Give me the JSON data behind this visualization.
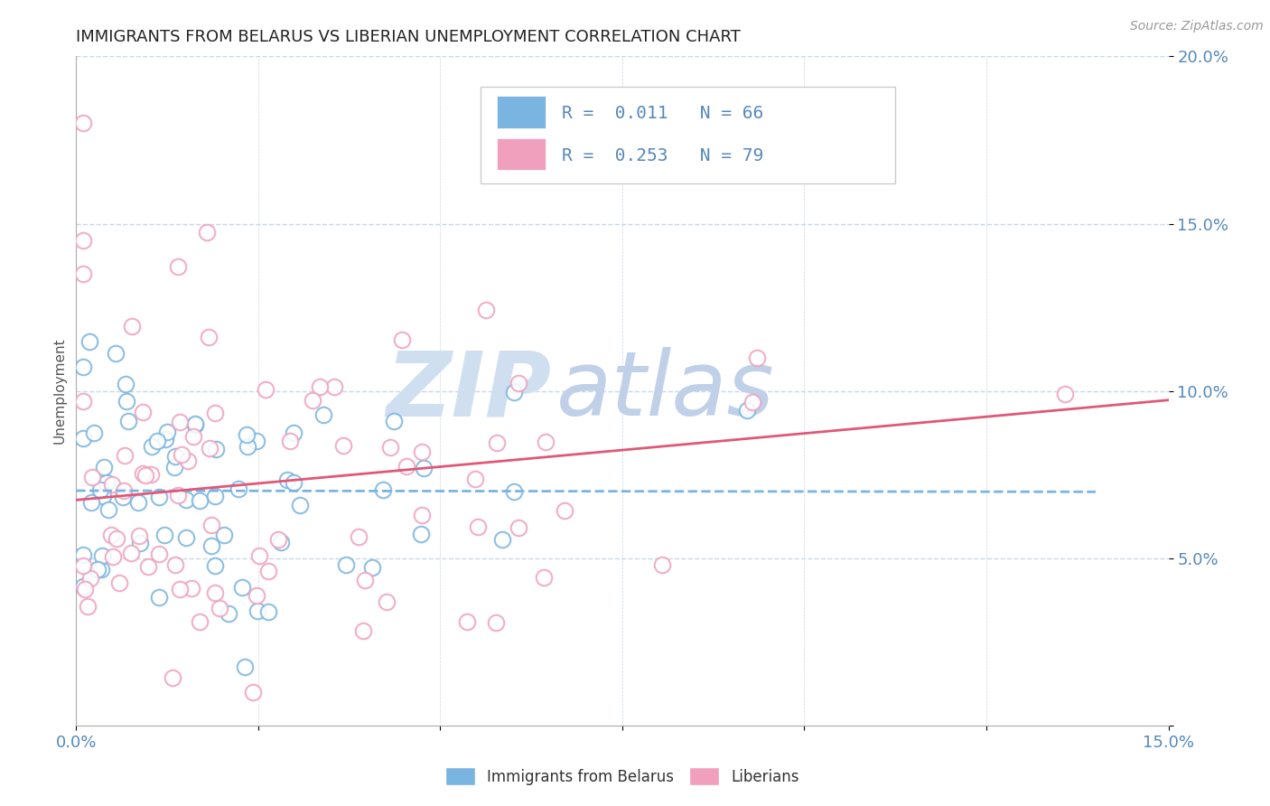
{
  "title": "IMMIGRANTS FROM BELARUS VS LIBERIAN UNEMPLOYMENT CORRELATION CHART",
  "source": "Source: ZipAtlas.com",
  "ylabel": "Unemployment",
  "legend1_label": "Immigrants from Belarus",
  "legend2_label": "Liberians",
  "R1": "0.011",
  "N1": "66",
  "R2": "0.253",
  "N2": "79",
  "color1": "#7ab4e0",
  "color2": "#f0a0bc",
  "trendline1_color": "#7ab4e0",
  "trendline2_color": "#e05878",
  "xlim": [
    0.0,
    0.15
  ],
  "ylim": [
    0.0,
    0.2
  ],
  "background_color": "#ffffff",
  "grid_color": "#c8d8e8",
  "tick_color": "#5588bb",
  "title_color": "#222222",
  "title_fontsize": 13,
  "tick_fontsize": 13,
  "legend_fontsize": 14,
  "ylabel_fontsize": 11,
  "source_fontsize": 10,
  "watermark_zip_color": "#d0dff0",
  "watermark_atlas_color": "#c0d0e8"
}
